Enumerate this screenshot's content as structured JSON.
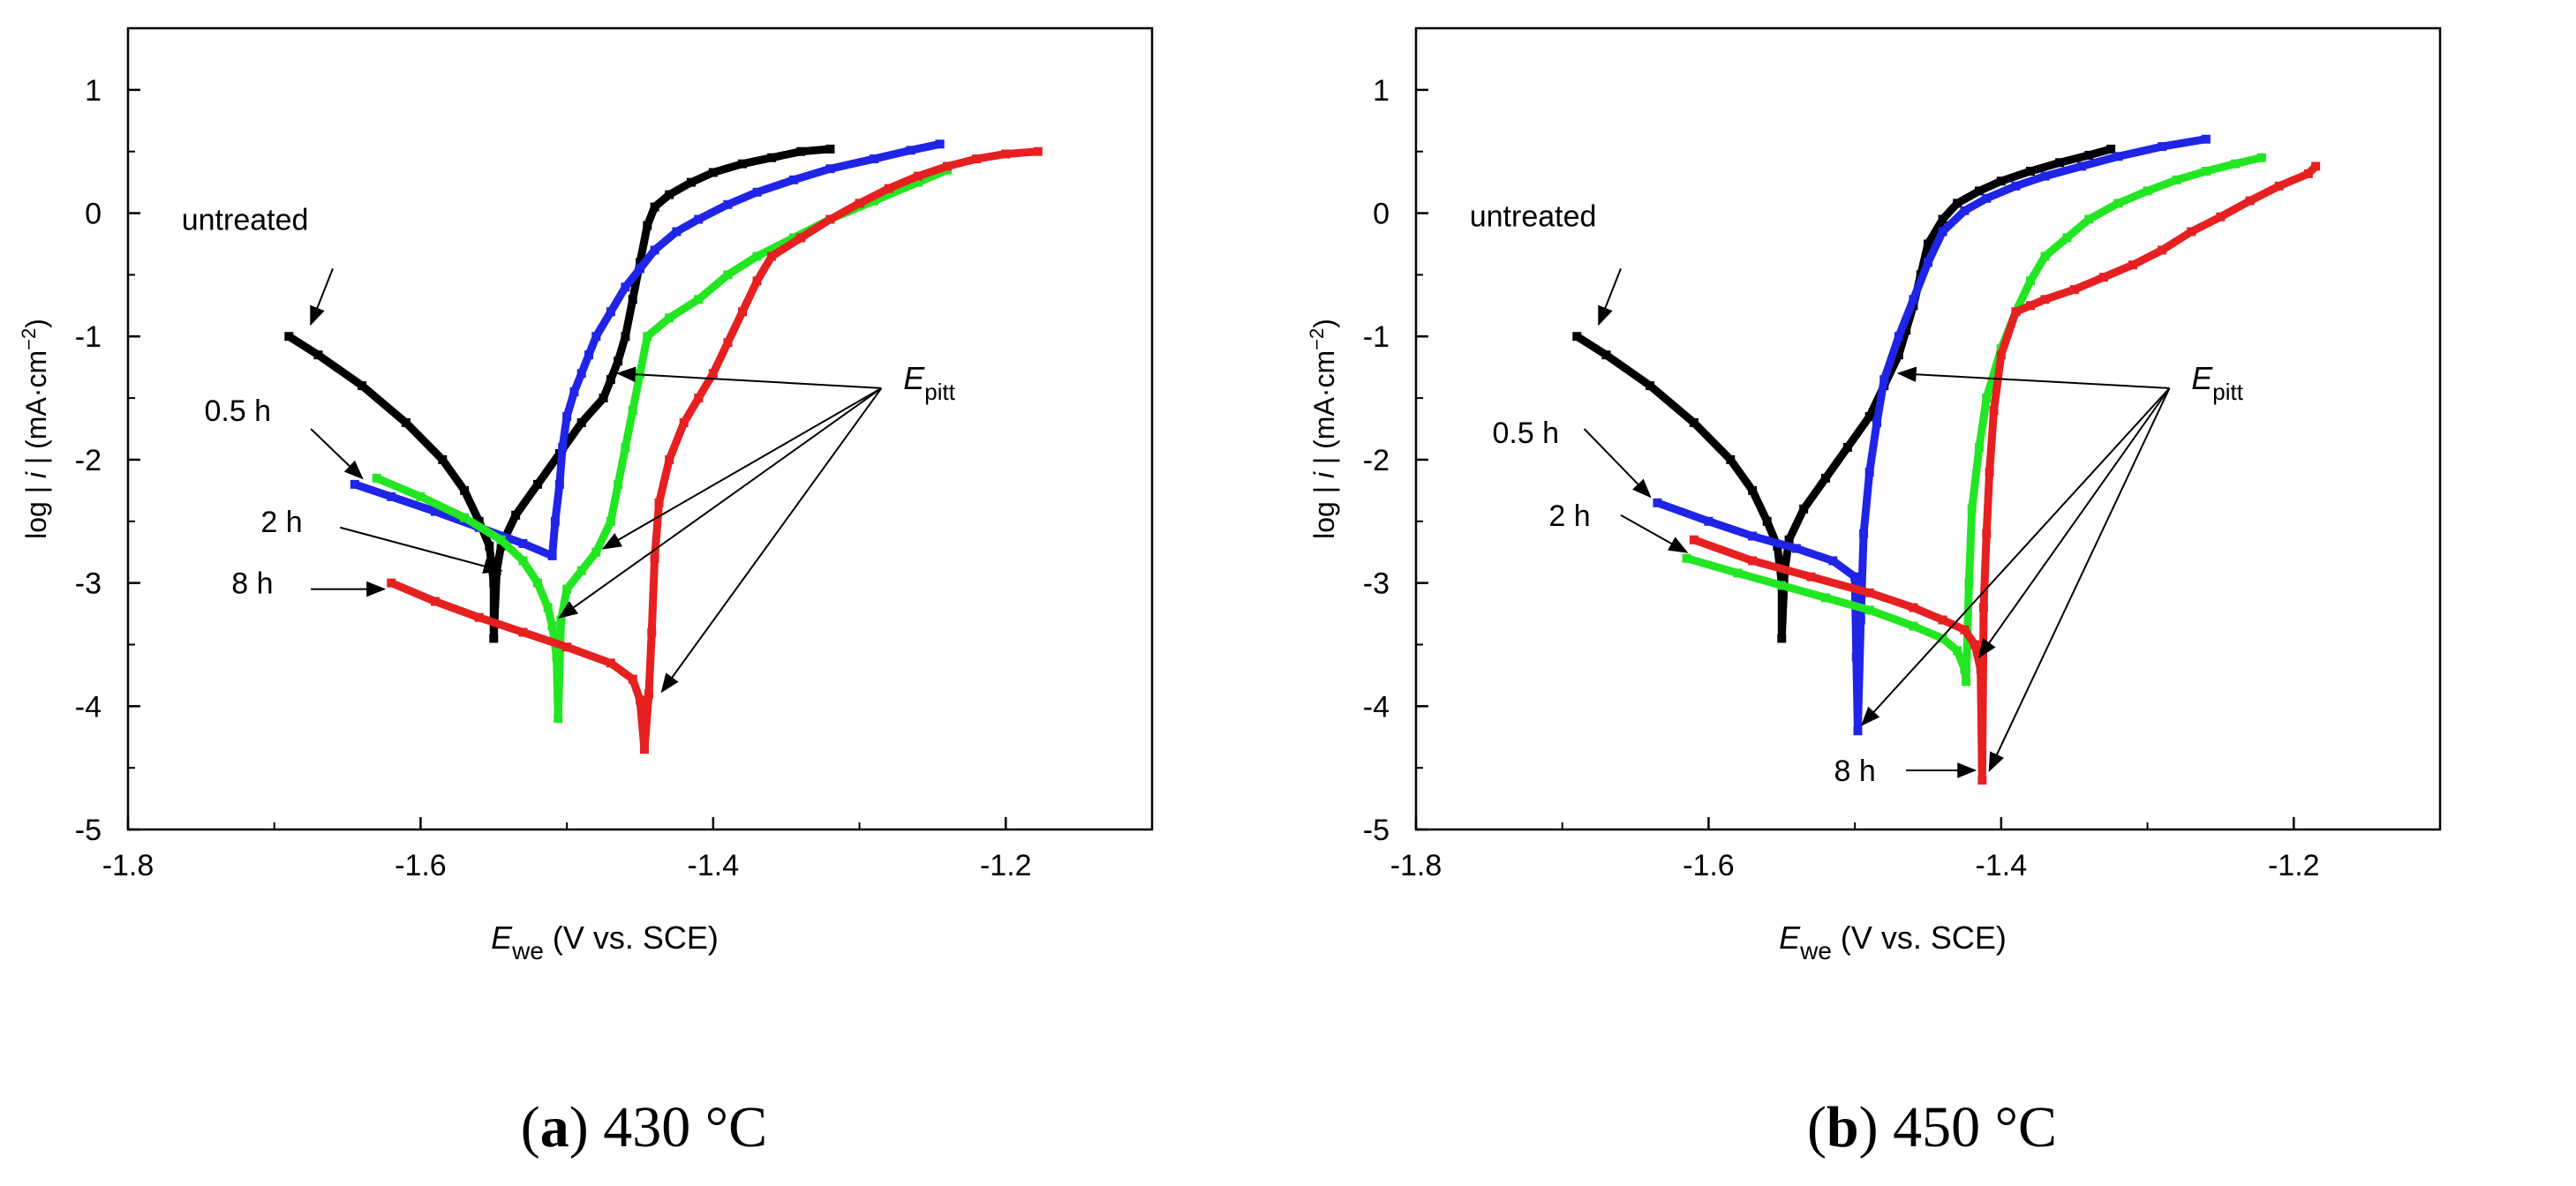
{
  "chart_data": [
    {
      "type": "line",
      "panel": "a",
      "caption": {
        "letter": "a",
        "text": "430 °C"
      },
      "xlabel": {
        "main": "E",
        "sub": "we",
        "rest": " (V vs. SCE)"
      },
      "ylabel": {
        "pre": "log | ",
        "italic": "i",
        "mid": " |  (mA·cm",
        "sup": "−2",
        "post": ")"
      },
      "xlim": [
        -1.8,
        -1.1
      ],
      "ylim": [
        -5,
        1.5
      ],
      "xticks": [
        -1.8,
        -1.6,
        -1.4,
        -1.2
      ],
      "xtick_labels": [
        "-1.8",
        "-1.6",
        "-1.4",
        "-1.2"
      ],
      "yticks": [
        -5,
        -4,
        -3,
        -2,
        -1,
        0,
        1
      ],
      "ytick_labels": [
        "-5",
        "-4",
        "-3",
        "-2",
        "-1",
        "0",
        "1"
      ],
      "grid": false,
      "colors": {
        "untreated": "#000000",
        "h05": "#1f24e6",
        "h2": "#22e622",
        "h8": "#e62020"
      },
      "series": [
        {
          "key": "untreated",
          "x": [
            -1.69,
            -1.67,
            -1.64,
            -1.61,
            -1.585,
            -1.57,
            -1.56,
            -1.553,
            -1.55,
            -1.55,
            -1.548,
            -1.545,
            -1.535,
            -1.52,
            -1.505,
            -1.49,
            -1.475,
            -1.47,
            -1.465,
            -1.46,
            -1.455,
            -1.45,
            -1.445,
            -1.44,
            -1.43,
            -1.415,
            -1.4,
            -1.38,
            -1.36,
            -1.34,
            -1.32
          ],
          "y": [
            -1.0,
            -1.15,
            -1.4,
            -1.7,
            -2.0,
            -2.25,
            -2.5,
            -2.7,
            -3.0,
            -3.45,
            -2.9,
            -2.7,
            -2.45,
            -2.2,
            -1.95,
            -1.7,
            -1.5,
            -1.35,
            -1.2,
            -1.0,
            -0.7,
            -0.4,
            -0.1,
            0.05,
            0.15,
            0.25,
            0.33,
            0.4,
            0.45,
            0.5,
            0.52
          ]
        },
        {
          "key": "h05",
          "x": [
            -1.645,
            -1.62,
            -1.59,
            -1.56,
            -1.53,
            -1.51,
            -1.508,
            -1.505,
            -1.503,
            -1.5,
            -1.495,
            -1.49,
            -1.485,
            -1.48,
            -1.47,
            -1.46,
            -1.45,
            -1.44,
            -1.425,
            -1.41,
            -1.39,
            -1.37,
            -1.345,
            -1.32,
            -1.29,
            -1.265,
            -1.245
          ],
          "y": [
            -2.2,
            -2.3,
            -2.42,
            -2.55,
            -2.68,
            -2.78,
            -2.5,
            -2.2,
            -1.9,
            -1.65,
            -1.45,
            -1.3,
            -1.15,
            -1.0,
            -0.8,
            -0.6,
            -0.45,
            -0.3,
            -0.15,
            -0.05,
            0.07,
            0.17,
            0.27,
            0.36,
            0.44,
            0.51,
            0.56
          ]
        },
        {
          "key": "h2",
          "x": [
            -1.63,
            -1.6,
            -1.57,
            -1.545,
            -1.53,
            -1.52,
            -1.513,
            -1.51,
            -1.507,
            -1.506,
            -1.504,
            -1.5,
            -1.49,
            -1.48,
            -1.47,
            -1.465,
            -1.46,
            -1.455,
            -1.45,
            -1.445,
            -1.43,
            -1.41,
            -1.39,
            -1.37,
            -1.345,
            -1.32,
            -1.29,
            -1.26,
            -1.24
          ],
          "y": [
            -2.15,
            -2.3,
            -2.47,
            -2.65,
            -2.82,
            -3.0,
            -3.2,
            -3.35,
            -3.6,
            -4.1,
            -3.3,
            -3.05,
            -2.9,
            -2.75,
            -2.5,
            -2.2,
            -1.9,
            -1.6,
            -1.3,
            -1.0,
            -0.85,
            -0.7,
            -0.5,
            -0.35,
            -0.2,
            -0.05,
            0.1,
            0.25,
            0.35
          ]
        },
        {
          "key": "h8",
          "x": [
            -1.62,
            -1.59,
            -1.56,
            -1.53,
            -1.5,
            -1.47,
            -1.455,
            -1.45,
            -1.447,
            -1.444,
            -1.442,
            -1.44,
            -1.437,
            -1.43,
            -1.42,
            -1.41,
            -1.4,
            -1.39,
            -1.38,
            -1.37,
            -1.36,
            -1.34,
            -1.32,
            -1.3,
            -1.28,
            -1.26,
            -1.24,
            -1.22,
            -1.2,
            -1.178
          ],
          "y": [
            -3.0,
            -3.15,
            -3.28,
            -3.4,
            -3.52,
            -3.65,
            -3.78,
            -3.95,
            -4.35,
            -3.9,
            -3.4,
            -2.8,
            -2.35,
            -2.0,
            -1.7,
            -1.5,
            -1.3,
            -1.05,
            -0.8,
            -0.55,
            -0.35,
            -0.2,
            -0.05,
            0.08,
            0.2,
            0.3,
            0.38,
            0.44,
            0.48,
            0.5
          ]
        }
      ],
      "annotations": [
        {
          "text": "untreated",
          "x": -1.72,
          "y": -0.05
        },
        {
          "text": "0.5 h",
          "x": -1.725,
          "y": -1.6
        },
        {
          "text": "2 h",
          "x": -1.695,
          "y": -2.5
        },
        {
          "text": "8 h",
          "x": -1.715,
          "y": -3.0
        }
      ],
      "epitt": {
        "main": "E",
        "sub": "pitt",
        "x": -1.27,
        "y": -1.4
      },
      "arrows": [
        {
          "from": [
            -1.66,
            -0.45
          ],
          "to": [
            -1.675,
            -0.9
          ]
        },
        {
          "from": [
            -1.675,
            -1.75
          ],
          "to": [
            -1.64,
            -2.15
          ]
        },
        {
          "from": [
            -1.655,
            -2.55
          ],
          "to": [
            -1.545,
            -2.9
          ]
        },
        {
          "from": [
            -1.675,
            -3.05
          ],
          "to": [
            -1.625,
            -3.05
          ]
        },
        {
          "from": [
            -1.285,
            -1.42
          ],
          "to": [
            -1.465,
            -1.3
          ]
        },
        {
          "from": [
            -1.285,
            -1.42
          ],
          "to": [
            -1.475,
            -2.72
          ]
        },
        {
          "from": [
            -1.285,
            -1.42
          ],
          "to": [
            -1.505,
            -3.28
          ]
        },
        {
          "from": [
            -1.285,
            -1.42
          ],
          "to": [
            -1.435,
            -3.88
          ]
        }
      ]
    },
    {
      "type": "line",
      "panel": "b",
      "caption": {
        "letter": "b",
        "text": "450 °C"
      },
      "xlabel": {
        "main": "E",
        "sub": "we",
        "rest": " (V vs. SCE)"
      },
      "ylabel": {
        "pre": "log | ",
        "italic": "i",
        "mid": " |  (mA·cm",
        "sup": "−2",
        "post": ")"
      },
      "xlim": [
        -1.8,
        -1.1
      ],
      "ylim": [
        -5,
        1.5
      ],
      "xticks": [
        -1.8,
        -1.6,
        -1.4,
        -1.2
      ],
      "xtick_labels": [
        "-1.8",
        "-1.6",
        "-1.4",
        "-1.2"
      ],
      "yticks": [
        -5,
        -4,
        -3,
        -2,
        -1,
        0,
        1
      ],
      "ytick_labels": [
        "-5",
        "-4",
        "-3",
        "-2",
        "-1",
        "0",
        "1"
      ],
      "grid": false,
      "colors": {
        "untreated": "#000000",
        "h05": "#1f24e6",
        "h2": "#22e622",
        "h8": "#e62020"
      },
      "series": [
        {
          "key": "untreated",
          "x": [
            -1.69,
            -1.67,
            -1.64,
            -1.61,
            -1.585,
            -1.57,
            -1.56,
            -1.553,
            -1.55,
            -1.55,
            -1.548,
            -1.545,
            -1.535,
            -1.52,
            -1.505,
            -1.49,
            -1.48,
            -1.47,
            -1.465,
            -1.46,
            -1.455,
            -1.45,
            -1.44,
            -1.43,
            -1.415,
            -1.4,
            -1.38,
            -1.36,
            -1.34,
            -1.325
          ],
          "y": [
            -1.0,
            -1.15,
            -1.4,
            -1.7,
            -2.0,
            -2.25,
            -2.5,
            -2.7,
            -3.0,
            -3.45,
            -2.9,
            -2.65,
            -2.4,
            -2.15,
            -1.9,
            -1.65,
            -1.4,
            -1.15,
            -0.95,
            -0.75,
            -0.5,
            -0.25,
            -0.05,
            0.08,
            0.18,
            0.26,
            0.34,
            0.41,
            0.47,
            0.52
          ]
        },
        {
          "key": "h05",
          "x": [
            -1.635,
            -1.6,
            -1.57,
            -1.54,
            -1.515,
            -1.5,
            -1.499,
            -1.498,
            -1.496,
            -1.494,
            -1.49,
            -1.485,
            -1.48,
            -1.47,
            -1.46,
            -1.45,
            -1.44,
            -1.425,
            -1.41,
            -1.39,
            -1.37,
            -1.345,
            -1.32,
            -1.29,
            -1.26
          ],
          "y": [
            -2.35,
            -2.5,
            -2.62,
            -2.72,
            -2.82,
            -2.95,
            -3.6,
            -4.2,
            -3.3,
            -2.6,
            -2.1,
            -1.7,
            -1.35,
            -1.0,
            -0.7,
            -0.4,
            -0.15,
            0.02,
            0.12,
            0.22,
            0.3,
            0.38,
            0.46,
            0.54,
            0.6
          ]
        },
        {
          "key": "h2",
          "x": [
            -1.615,
            -1.58,
            -1.55,
            -1.52,
            -1.49,
            -1.46,
            -1.44,
            -1.43,
            -1.425,
            -1.424,
            -1.422,
            -1.42,
            -1.415,
            -1.41,
            -1.4,
            -1.39,
            -1.38,
            -1.37,
            -1.355,
            -1.34,
            -1.32,
            -1.3,
            -1.28,
            -1.26,
            -1.24,
            -1.222
          ],
          "y": [
            -2.8,
            -2.92,
            -3.02,
            -3.12,
            -3.22,
            -3.35,
            -3.45,
            -3.55,
            -3.7,
            -3.8,
            -3.0,
            -2.4,
            -1.9,
            -1.5,
            -1.1,
            -0.8,
            -0.55,
            -0.35,
            -0.2,
            -0.05,
            0.08,
            0.18,
            0.27,
            0.34,
            0.4,
            0.45
          ]
        },
        {
          "key": "h8",
          "x": [
            -1.61,
            -1.57,
            -1.53,
            -1.49,
            -1.46,
            -1.44,
            -1.425,
            -1.418,
            -1.414,
            -1.413,
            -1.412,
            -1.41,
            -1.408,
            -1.405,
            -1.4,
            -1.39,
            -1.38,
            -1.37,
            -1.35,
            -1.33,
            -1.31,
            -1.29,
            -1.27,
            -1.25,
            -1.23,
            -1.21,
            -1.19,
            -1.185
          ],
          "y": [
            -2.65,
            -2.82,
            -2.95,
            -3.08,
            -3.2,
            -3.3,
            -3.38,
            -3.5,
            -3.7,
            -4.6,
            -3.2,
            -2.6,
            -2.1,
            -1.6,
            -1.15,
            -0.8,
            -0.75,
            -0.7,
            -0.62,
            -0.52,
            -0.42,
            -0.3,
            -0.15,
            -0.03,
            0.1,
            0.22,
            0.32,
            0.38
          ]
        }
      ],
      "annotations": [
        {
          "text": "untreated",
          "x": -1.72,
          "y": -0.02
        },
        {
          "text": "0.5 h",
          "x": -1.725,
          "y": -1.78
        },
        {
          "text": "2 h",
          "x": -1.695,
          "y": -2.45
        },
        {
          "text": "8 h",
          "x": -1.5,
          "y": -4.52
        }
      ],
      "epitt": {
        "main": "E",
        "sub": "pitt",
        "x": -1.27,
        "y": -1.4
      },
      "arrows": [
        {
          "from": [
            -1.66,
            -0.45
          ],
          "to": [
            -1.675,
            -0.9
          ]
        },
        {
          "from": [
            -1.685,
            -1.75
          ],
          "to": [
            -1.64,
            -2.3
          ]
        },
        {
          "from": [
            -1.66,
            -2.45
          ],
          "to": [
            -1.615,
            -2.75
          ]
        },
        {
          "from": [
            -1.465,
            -4.52
          ],
          "to": [
            -1.418,
            -4.52
          ]
        },
        {
          "from": [
            -1.285,
            -1.42
          ],
          "to": [
            -1.47,
            -1.3
          ]
        },
        {
          "from": [
            -1.285,
            -1.42
          ],
          "to": [
            -1.495,
            -4.15
          ]
        },
        {
          "from": [
            -1.285,
            -1.42
          ],
          "to": [
            -1.415,
            -3.6
          ]
        },
        {
          "from": [
            -1.285,
            -1.42
          ],
          "to": [
            -1.408,
            -4.52
          ]
        }
      ]
    }
  ]
}
